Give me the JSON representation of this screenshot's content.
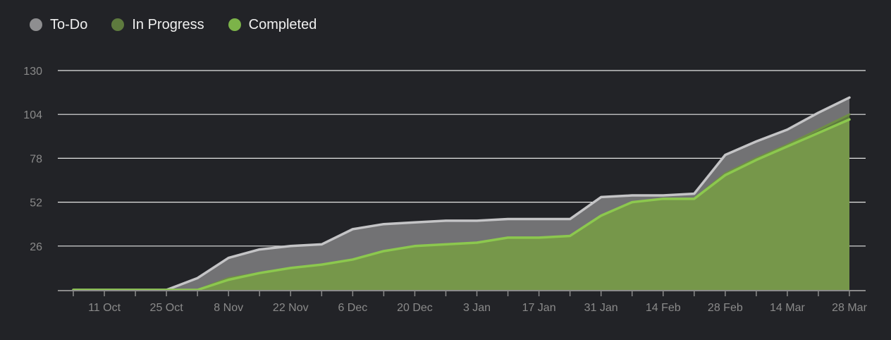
{
  "chart_data": {
    "type": "area",
    "title": "",
    "xlabel": "",
    "ylabel": "",
    "x": [
      "4 Oct",
      "11 Oct",
      "18 Oct",
      "25 Oct",
      "1 Nov",
      "8 Nov",
      "15 Nov",
      "22 Nov",
      "29 Nov",
      "6 Dec",
      "13 Dec",
      "20 Dec",
      "27 Dec",
      "3 Jan",
      "10 Jan",
      "17 Jan",
      "24 Jan",
      "31 Jan",
      "7 Feb",
      "14 Feb",
      "21 Feb",
      "28 Feb",
      "7 Mar",
      "14 Mar",
      "21 Mar",
      "28 Mar"
    ],
    "x_tick_labels": [
      "11 Oct",
      "25 Oct",
      "8 Nov",
      "22 Nov",
      "6 Dec",
      "20 Dec",
      "3 Jan",
      "17 Jan",
      "31 Jan",
      "14 Feb",
      "28 Feb",
      "14 Mar",
      "28 Mar"
    ],
    "y_ticks": [
      26,
      52,
      78,
      104,
      130
    ],
    "ylim": [
      0,
      130
    ],
    "grid": true,
    "legend_position": "top-left",
    "series": [
      {
        "name": "To-Do",
        "color": "#8e8e90",
        "values": [
          0,
          0,
          0,
          0,
          7,
          19,
          24,
          26,
          27,
          36,
          39,
          40,
          41,
          41,
          42,
          42,
          42,
          55,
          56,
          56,
          57,
          80,
          88,
          95,
          105,
          114
        ]
      },
      {
        "name": "In Progress",
        "color": "#5e7a3e",
        "values": [
          0,
          0,
          0,
          0,
          0,
          7,
          10,
          13,
          15,
          18,
          23,
          26,
          27,
          28,
          31,
          31,
          32,
          44,
          52,
          54,
          54,
          69,
          78,
          86,
          95,
          104
        ]
      },
      {
        "name": "Completed",
        "color": "#7cb349",
        "values": [
          0,
          0,
          0,
          0,
          0,
          6,
          10,
          13,
          15,
          18,
          23,
          26,
          27,
          28,
          31,
          31,
          32,
          44,
          52,
          54,
          54,
          68,
          77,
          85,
          93,
          101
        ]
      }
    ]
  }
}
